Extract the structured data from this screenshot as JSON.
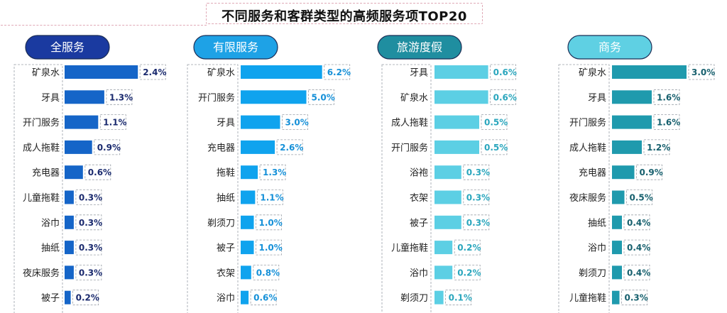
{
  "title": "不同服务和客群类型的高频服务项TOP20",
  "chart_data": [
    {
      "type": "bar",
      "title": "全服务",
      "color": "#1565c8",
      "pill_color": "#1a3aa0",
      "label_color": "#1a2a6e",
      "categories": [
        "矿泉水",
        "牙具",
        "开门服务",
        "成人拖鞋",
        "充电器",
        "儿童拖鞋",
        "浴巾",
        "抽纸",
        "夜床服务",
        "被子"
      ],
      "values": [
        2.4,
        1.3,
        1.1,
        0.9,
        0.6,
        0.3,
        0.3,
        0.3,
        0.3,
        0.2
      ],
      "value_labels": [
        "2.4%",
        "1.3%",
        "1.1%",
        "0.9%",
        "0.6%",
        "0.3%",
        "0.3%",
        "0.3%",
        "0.3%",
        "0.2%"
      ]
    },
    {
      "type": "bar",
      "title": "有限服务",
      "color": "#0fa3ee",
      "pill_color": "#1ea2e6",
      "label_color": "#1590d8",
      "categories": [
        "矿泉水",
        "开门服务",
        "牙具",
        "充电器",
        "拖鞋",
        "抽纸",
        "剃须刀",
        "被子",
        "衣架",
        "浴巾"
      ],
      "values": [
        6.2,
        5.0,
        3.0,
        2.6,
        1.3,
        1.1,
        1.0,
        1.0,
        0.8,
        0.6
      ],
      "value_labels": [
        "6.2%",
        "5.0%",
        "3.0%",
        "2.6%",
        "1.3%",
        "1.1%",
        "1.0%",
        "1.0%",
        "0.8%",
        "0.6%"
      ]
    },
    {
      "type": "bar",
      "title": "旅游度假",
      "color": "#5ccfe4",
      "pill_color": "#1f8ea0",
      "label_color": "#2aa6bd",
      "categories": [
        "牙具",
        "矿泉水",
        "成人拖鞋",
        "开门服务",
        "浴袍",
        "衣架",
        "被子",
        "儿童拖鞋",
        "浴巾",
        "剃须刀"
      ],
      "values": [
        0.6,
        0.6,
        0.5,
        0.5,
        0.3,
        0.3,
        0.3,
        0.2,
        0.2,
        0.1
      ],
      "value_labels": [
        "0.6%",
        "0.6%",
        "0.5%",
        "0.5%",
        "0.3%",
        "0.3%",
        "0.3%",
        "0.2%",
        "0.2%",
        "0.1%"
      ]
    },
    {
      "type": "bar",
      "title": "商务",
      "color": "#1f9aad",
      "pill_color": "#5fd0e3",
      "label_color": "#17606e",
      "categories": [
        "矿泉水",
        "牙具",
        "开门服务",
        "成人拖鞋",
        "充电器",
        "夜床服务",
        "抽纸",
        "浴巾",
        "剃须刀",
        "儿童拖鞋"
      ],
      "values": [
        3.0,
        1.6,
        1.6,
        1.2,
        0.9,
        0.5,
        0.4,
        0.4,
        0.4,
        0.3
      ],
      "value_labels": [
        "3.0%",
        "1.6%",
        "1.6%",
        "1.2%",
        "0.9%",
        "0.5%",
        "0.4%",
        "0.4%",
        "0.4%",
        "0.3%"
      ]
    }
  ]
}
